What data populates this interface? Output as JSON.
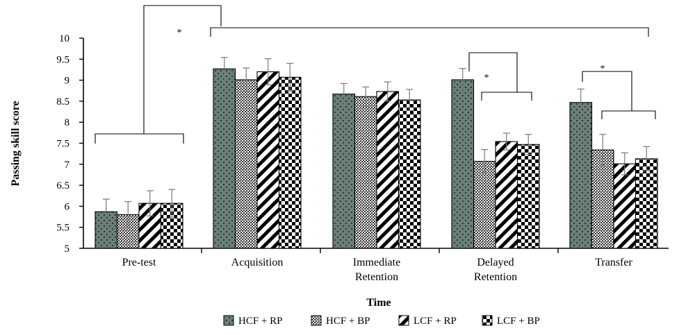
{
  "chart_data": {
    "type": "bar",
    "xlabel": "Time",
    "ylabel": "Passing skill score",
    "ylim": [
      5,
      10
    ],
    "yticks": [
      5,
      5.5,
      6,
      6.5,
      7,
      7.5,
      8,
      8.5,
      9,
      9.5,
      10
    ],
    "ytick_labels": [
      "5",
      "5.5",
      "6",
      "6.5",
      "7",
      "7.5",
      "8",
      "8.5",
      "9",
      "9.5",
      "10"
    ],
    "categories": [
      [
        "Pre-test"
      ],
      [
        "Acquisition"
      ],
      [
        "Immediate",
        "Retention"
      ],
      [
        "Delayed",
        "Retention"
      ],
      [
        "Transfer"
      ]
    ],
    "series": [
      {
        "name": "HCF + RP",
        "pattern": "dots-on-grey",
        "values": [
          5.87,
          9.27,
          8.67,
          9.01,
          8.47
        ],
        "errors": [
          0.3,
          0.27,
          0.25,
          0.27,
          0.32
        ]
      },
      {
        "name": "HCF + BP",
        "pattern": "crosshatch",
        "values": [
          5.8,
          9.01,
          8.61,
          7.07,
          7.34
        ],
        "errors": [
          0.31,
          0.28,
          0.23,
          0.28,
          0.37
        ]
      },
      {
        "name": "LCF + RP",
        "pattern": "diagonal-stripes",
        "values": [
          6.07,
          9.2,
          8.73,
          7.54,
          7.01
        ],
        "errors": [
          0.3,
          0.31,
          0.23,
          0.2,
          0.26
        ]
      },
      {
        "name": "LCF + BP",
        "pattern": "checkerboard",
        "values": [
          6.07,
          9.07,
          8.53,
          7.47,
          7.13
        ],
        "errors": [
          0.33,
          0.33,
          0.25,
          0.24,
          0.29
        ]
      }
    ],
    "legend_position": "bottom",
    "grid": false,
    "significance_marker": "*",
    "colors": {
      "grey_fill": "#6b7f7a",
      "ink": "#000000",
      "error_bar": "#777777"
    }
  }
}
